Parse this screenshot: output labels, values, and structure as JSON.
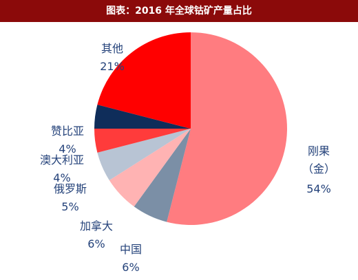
{
  "chart_data": {
    "type": "pie",
    "title": "图表：2016 年全球钴矿产量占比",
    "categories": [
      "刚果（金）",
      "中国",
      "加拿大",
      "俄罗斯",
      "澳大利亚",
      "赞比亚",
      "其他"
    ],
    "values": [
      54,
      6,
      6,
      5,
      4,
      4,
      21
    ],
    "value_labels": [
      "54%",
      "6%",
      "6%",
      "5%",
      "4%",
      "4%",
      "21%"
    ],
    "colors": [
      "#ff7c80",
      "#7b8fa6",
      "#ffb3b3",
      "#b8c4d4",
      "#ff3b3b",
      "#0f2d5a",
      "#ff0000"
    ]
  }
}
